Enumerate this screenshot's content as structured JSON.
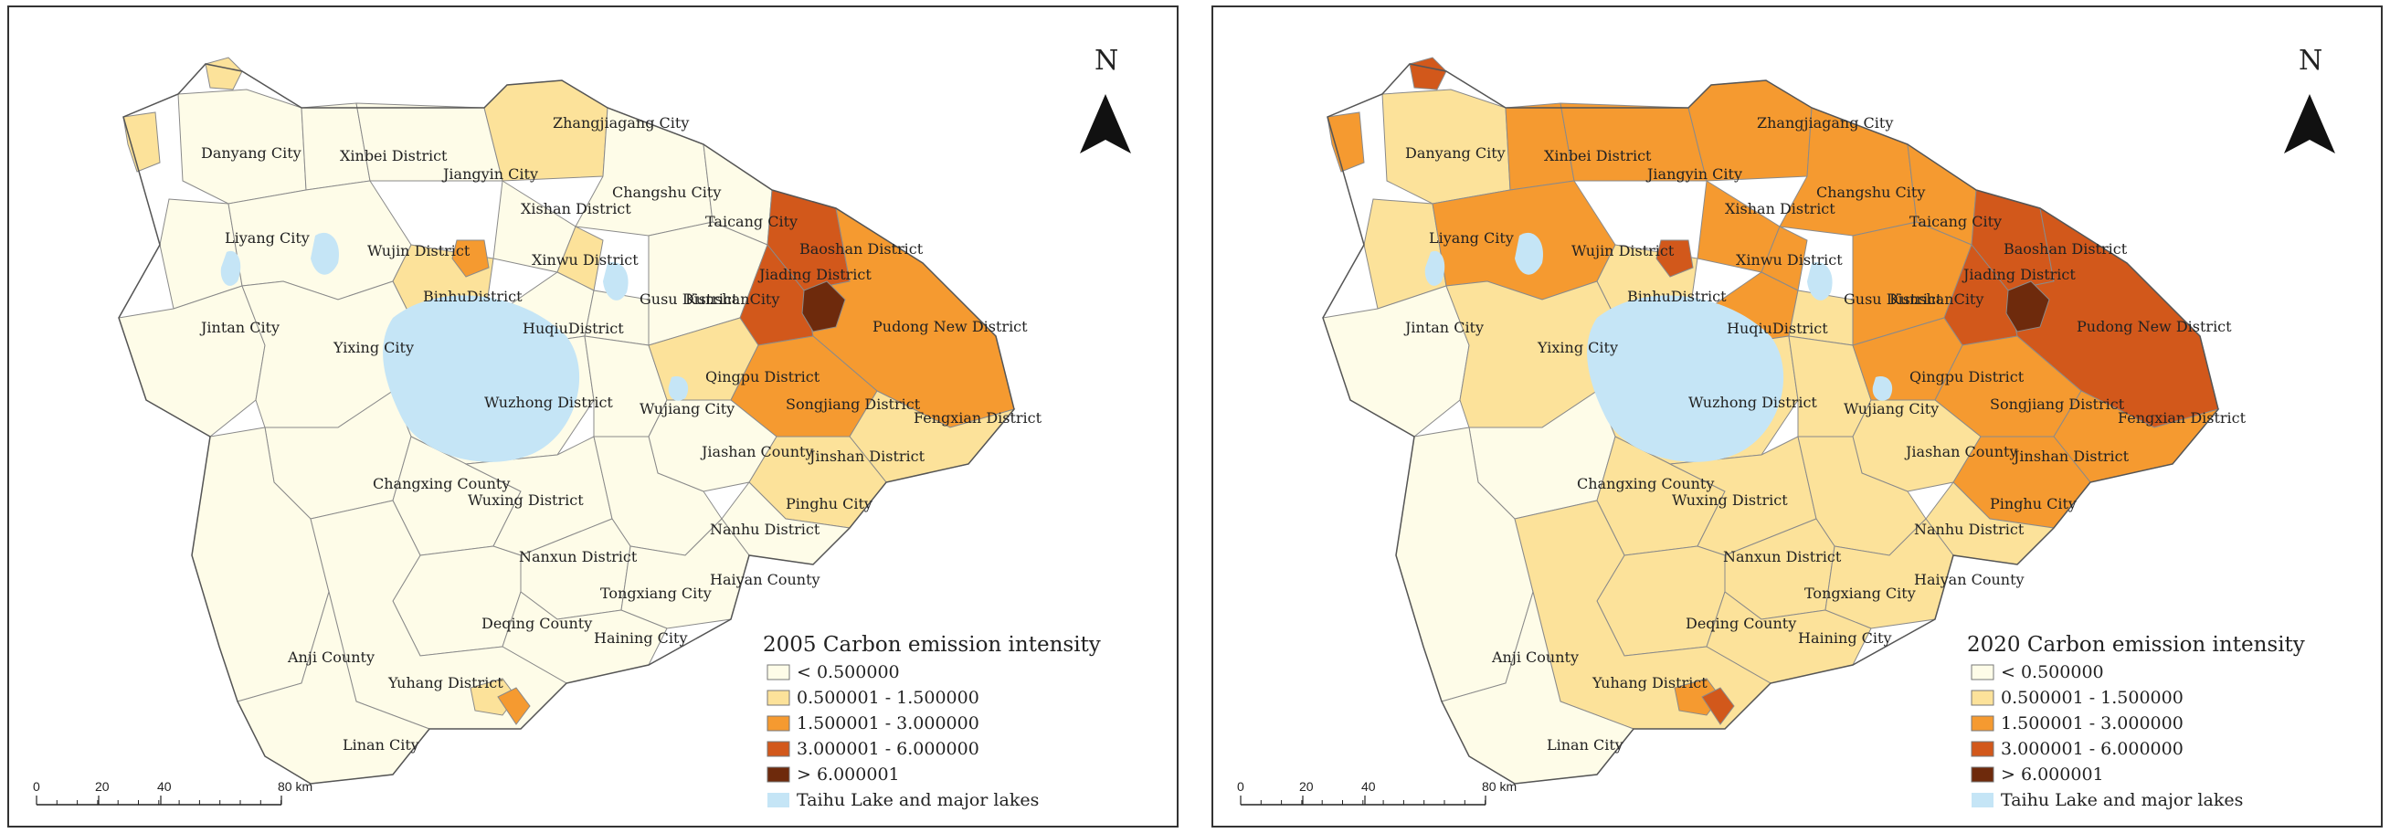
{
  "colors": {
    "c1": "#FEFCE8",
    "c2": "#FCE29A",
    "c3": "#F59A30",
    "c4": "#D2581B",
    "c5": "#6E2A0C",
    "lake": "#C5E5F6",
    "border": "#8a8a8a"
  },
  "panels": [
    {
      "id": "left",
      "legend_title": "2005 Carbon emission intensity",
      "labels": [
        "Danyang City",
        "Xinbei District",
        "Jiangyin City",
        "Zhangjiagang City",
        "Changshu City",
        "Taicang City",
        "Xishan District",
        "Xinwu District",
        "Liyang City",
        "Wujin District",
        "BinhuDistrict",
        "HuqiuDistrict",
        "Gusu District",
        "KunshanCity",
        "Baoshan District",
        "Jiading District",
        "Pudong New District",
        "Jintan City",
        "Yixing City",
        "Wuzhong District",
        "Wujiang City",
        "Qingpu District",
        "Songjiang District",
        "Fengxian District",
        "Jiashan County",
        "Jinshan District",
        "Pinghu City",
        "Changxing County",
        "Wuxing District",
        "Nanxun District",
        "Nanhu District",
        "Tongxiang City",
        "Haiyan County",
        "Deqing County",
        "Haining City",
        "Anji County",
        "Yuhang District",
        "Linan City"
      ],
      "fills": {
        "danyang": "c1",
        "zhangjiagang": "c2",
        "jiangyin": "c1",
        "xinbei": "c1",
        "changshu": "c1",
        "taicang": "c1",
        "xishan": "c1",
        "xinwu": "c2",
        "liyang": "c1",
        "wujin": "c1",
        "binhu": "c2",
        "huqiu": "c1",
        "gusu": "c1",
        "kunshan": "c1",
        "baoshan": "c4",
        "jiading": "c4",
        "pudong": "c3",
        "jintan": "c1",
        "yixing": "c1",
        "wuzhong": "c1",
        "wujiang": "c1",
        "qingpu": "c2",
        "songjiang": "c3",
        "fengxian": "c2",
        "jinshan": "c2",
        "jiashan": "c1",
        "pinghu": "c1",
        "changxing": "c1",
        "wuxing": "c1",
        "nanxun": "c1",
        "nanhu": "c1",
        "tongxiang": "c1",
        "haiyan": "c1",
        "deqing": "c1",
        "haining": "c1",
        "anji": "c1",
        "yuhang": "c1",
        "linan": "c1",
        "urban_core": "c5",
        "spot_n": "c2",
        "spot_w": "c2",
        "spot_s": "c2",
        "spot_s2": "c3",
        "spot_binhu": "c3"
      }
    },
    {
      "id": "right",
      "legend_title": "2020 Carbon emission intensity",
      "labels": [
        "Danyang City",
        "Xinbei District",
        "Jiangyin City",
        "Zhangjiagang City",
        "Changshu City",
        "Taicang City",
        "Xishan District",
        "Xinwu District",
        "Liyang City",
        "Wujin District",
        "BinhuDistrict",
        "HuqiuDistrict",
        "Gusu District",
        "KunshanCity",
        "Baoshan District",
        "Jiading District",
        "Pudong New District",
        "Jintan City",
        "Yixing City",
        "Wuzhong District",
        "Wujiang City",
        "Qingpu District",
        "Songjiang District",
        "Fengxian District",
        "Jiashan County",
        "Jinshan District",
        "Pinghu City",
        "Changxing County",
        "Wuxing District",
        "Nanxun District",
        "Nanhu District",
        "Tongxiang City",
        "Haiyan County",
        "Deqing County",
        "Haining City",
        "Anji County",
        "Yuhang District",
        "Linan City"
      ],
      "fills": {
        "danyang": "c2",
        "zhangjiagang": "c3",
        "jiangyin": "c3",
        "xinbei": "c3",
        "changshu": "c3",
        "taicang": "c3",
        "xishan": "c3",
        "xinwu": "c3",
        "liyang": "c2",
        "wujin": "c3",
        "binhu": "c2",
        "huqiu": "c3",
        "gusu": "c2",
        "kunshan": "c3",
        "baoshan": "c4",
        "jiading": "c4",
        "pudong": "c4",
        "jintan": "c1",
        "yixing": "c2",
        "wuzhong": "c2",
        "wujiang": "c2",
        "qingpu": "c3",
        "songjiang": "c3",
        "fengxian": "c3",
        "jinshan": "c3",
        "jiashan": "c2",
        "pinghu": "c2",
        "changxing": "c1",
        "wuxing": "c2",
        "nanxun": "c2",
        "nanhu": "c2",
        "tongxiang": "c2",
        "haiyan": "c2",
        "deqing": "c2",
        "haining": "c2",
        "anji": "c1",
        "yuhang": "c2",
        "linan": "c1",
        "urban_core": "c5",
        "spot_n": "c4",
        "spot_w": "c3",
        "spot_s": "c3",
        "spot_s2": "c4",
        "spot_binhu": "c4"
      }
    }
  ],
  "legend_items": [
    "< 0.500000",
    "0.500001 - 1.500000",
    "1.500001 - 3.000000",
    "3.000001 - 6.000000",
    "> 6.000001",
    "Taihu Lake and major lakes"
  ],
  "north_label": "N",
  "scale_ticks": [
    "0",
    "20",
    "40",
    "80 km"
  ]
}
